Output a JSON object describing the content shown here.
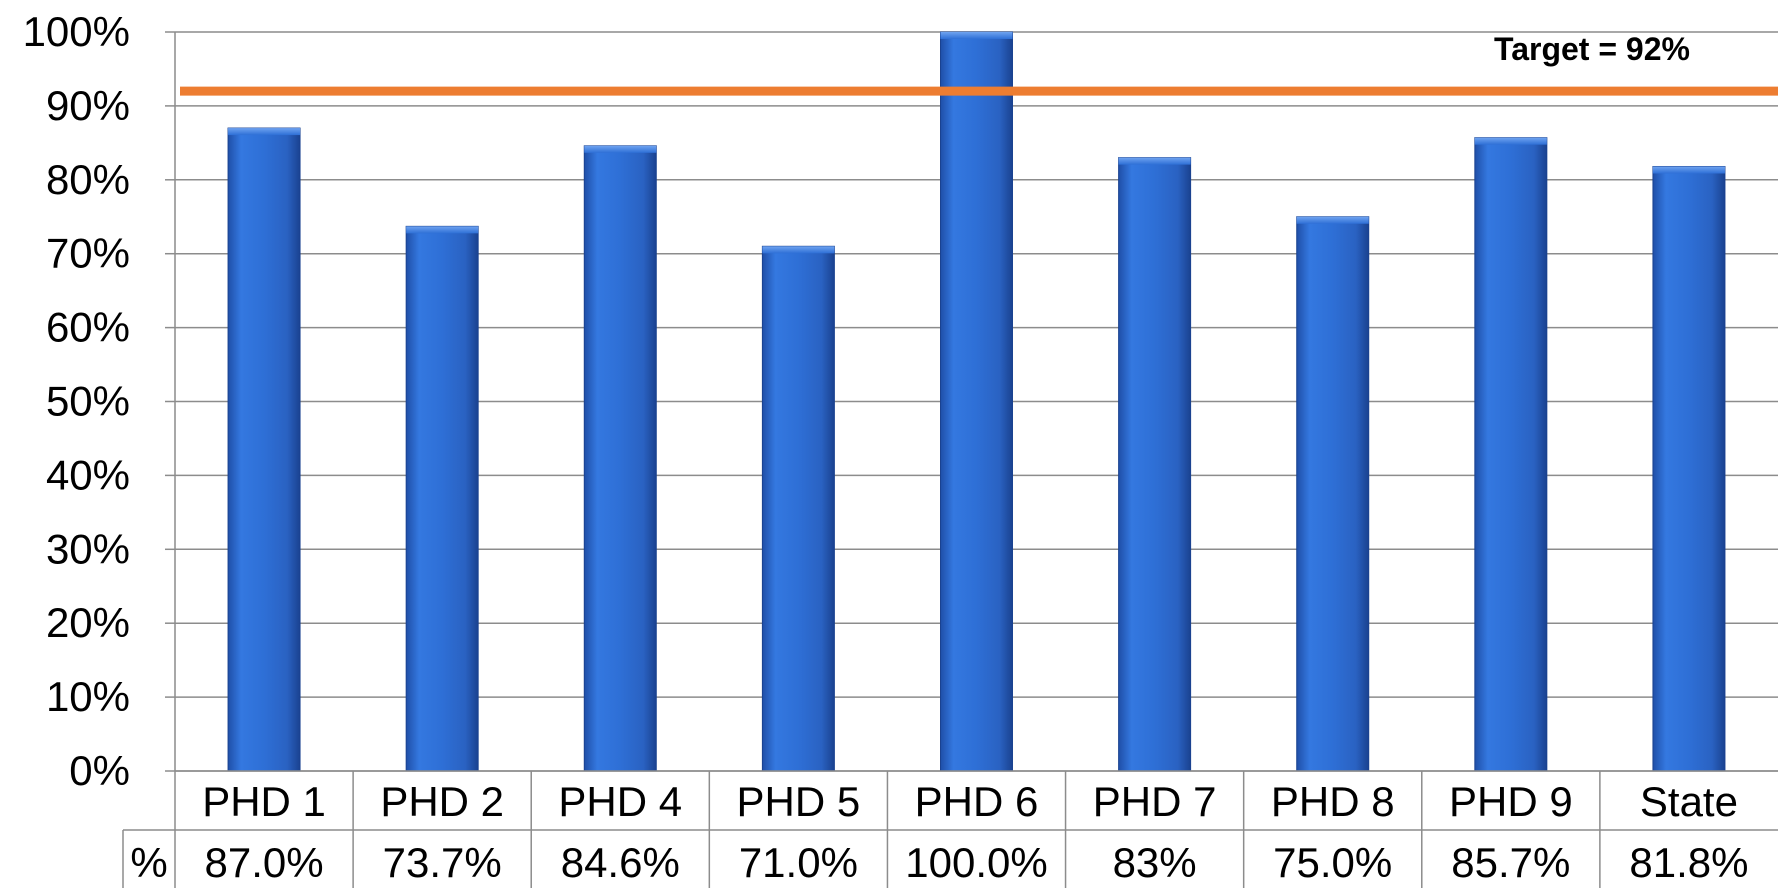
{
  "chart_data": {
    "type": "bar",
    "categories": [
      "PHD 1",
      "PHD 2",
      "PHD 4",
      "PHD 5",
      "PHD 6",
      "PHD 7",
      "PHD 8",
      "PHD 9",
      "State"
    ],
    "values": [
      87.0,
      73.7,
      84.6,
      71.0,
      100.0,
      83.0,
      75.0,
      85.7,
      81.8
    ],
    "value_labels": [
      "87.0%",
      "73.7%",
      "84.6%",
      "71.0%",
      "100.0%",
      "83%",
      "75.0%",
      "85.7%",
      "81.8%"
    ],
    "ylim": [
      0,
      100
    ],
    "y_ticks": [
      0,
      10,
      20,
      30,
      40,
      50,
      60,
      70,
      80,
      90,
      100
    ],
    "y_tick_labels": [
      "0%",
      "10%",
      "20%",
      "30%",
      "40%",
      "50%",
      "60%",
      "70%",
      "80%",
      "90%",
      "100%"
    ],
    "grid": true,
    "data_table": true,
    "data_table_row_label": "%",
    "target": {
      "value": 92,
      "label": "Target = 92%",
      "color": "#ED7D31"
    },
    "bar_color": "#2E6FD6"
  }
}
